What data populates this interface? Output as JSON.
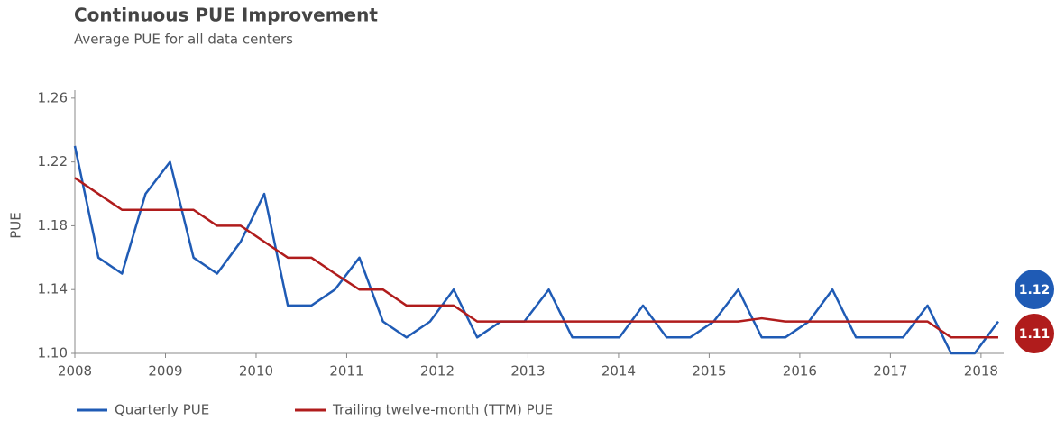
{
  "chart_data": {
    "type": "line",
    "title": "Continuous PUE Improvement",
    "subtitle": "Average PUE for all data centers",
    "y_label": "PUE",
    "x": [
      2008,
      2008.26,
      2008.52,
      2008.78,
      2009.05,
      2009.31,
      2009.57,
      2009.83,
      2010.09,
      2010.35,
      2010.61,
      2010.87,
      2011.14,
      2011.4,
      2011.66,
      2011.92,
      2012.18,
      2012.44,
      2012.7,
      2012.96,
      2013.23,
      2013.49,
      2013.75,
      2014.01,
      2014.27,
      2014.53,
      2014.79,
      2015.05,
      2015.32,
      2015.58,
      2015.84,
      2016.1,
      2016.36,
      2016.62,
      2016.88,
      2017.14,
      2017.41,
      2017.67,
      2017.93,
      2018.19
    ],
    "series": [
      {
        "name": "Quarterly PUE",
        "color": "#1f5bb5",
        "end_label": "1.12",
        "values": [
          1.23,
          1.16,
          1.15,
          1.2,
          1.22,
          1.16,
          1.15,
          1.17,
          1.2,
          1.13,
          1.13,
          1.14,
          1.16,
          1.12,
          1.11,
          1.12,
          1.14,
          1.11,
          1.12,
          1.12,
          1.14,
          1.11,
          1.11,
          1.11,
          1.13,
          1.11,
          1.11,
          1.12,
          1.14,
          1.11,
          1.11,
          1.12,
          1.14,
          1.11,
          1.11,
          1.11,
          1.13,
          1.1,
          1.1,
          1.12
        ]
      },
      {
        "name": "Trailing twelve-month (TTM) PUE",
        "color": "#b01c1c",
        "end_label": "1.11",
        "values": [
          1.21,
          1.2,
          1.19,
          1.19,
          1.19,
          1.19,
          1.18,
          1.18,
          1.17,
          1.16,
          1.16,
          1.15,
          1.14,
          1.14,
          1.13,
          1.13,
          1.13,
          1.12,
          1.12,
          1.12,
          1.12,
          1.12,
          1.12,
          1.12,
          1.12,
          1.12,
          1.12,
          1.12,
          1.12,
          1.122,
          1.12,
          1.12,
          1.12,
          1.12,
          1.12,
          1.12,
          1.12,
          1.11,
          1.11,
          1.11
        ]
      }
    ],
    "xlim": [
      2008,
      2018.25
    ],
    "xticks": [
      2008,
      2009,
      2010,
      2011,
      2012,
      2013,
      2014,
      2015,
      2016,
      2017,
      2018
    ],
    "ylim": [
      1.1,
      1.265
    ],
    "yticks": [
      {
        "value": 1.1,
        "label": "1.10"
      },
      1.14,
      1.18,
      1.22,
      1.26
    ],
    "grid": false
  }
}
